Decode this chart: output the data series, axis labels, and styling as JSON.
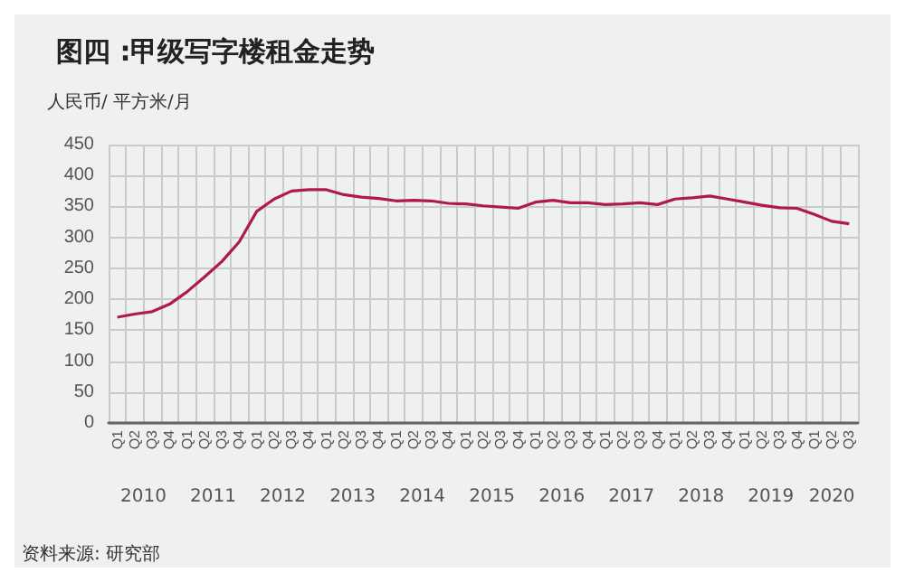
{
  "chart_data": {
    "type": "line",
    "title": "图四 :甲级写字楼租金走势",
    "ylabel": "人民币/ 平方米/月",
    "categories": [
      "Q1",
      "Q2",
      "Q3",
      "Q4",
      "Q1",
      "Q2",
      "Q3",
      "Q4",
      "Q1",
      "Q2",
      "Q3",
      "Q4",
      "Q1",
      "Q2",
      "Q3",
      "Q4",
      "Q1",
      "Q2",
      "Q3",
      "Q4",
      "Q1",
      "Q2",
      "Q3",
      "Q4",
      "Q1",
      "Q2",
      "Q3",
      "Q4",
      "Q1",
      "Q2",
      "Q3",
      "Q4",
      "Q1",
      "Q2",
      "Q3",
      "Q4",
      "Q1",
      "Q2",
      "Q3",
      "Q4",
      "Q1",
      "Q2",
      "Q3"
    ],
    "series": [
      {
        "color": "#b01a4b",
        "values": [
          171,
          176,
          180,
          192,
          212,
          236,
          261,
          293,
          342,
          362,
          375,
          377,
          377,
          369,
          365,
          363,
          359,
          360,
          359,
          355,
          354,
          351,
          349,
          347,
          357,
          360,
          356,
          356,
          353,
          354,
          356,
          353,
          362,
          364,
          367,
          362,
          357,
          352,
          348,
          347,
          337,
          326,
          322
        ]
      }
    ],
    "annotations": [
      "2010",
      "2011",
      "2012",
      "2013",
      "2014",
      "2015",
      "2016",
      "2017",
      "2018",
      "2019",
      "2020",
      "资料来源: 研究部"
    ],
    "ylim": [
      0,
      450
    ],
    "yticks": [
      0,
      50,
      100,
      150,
      200,
      250,
      300,
      350,
      400,
      450
    ],
    "grid": true,
    "marker": "none",
    "line_style": "solid"
  }
}
